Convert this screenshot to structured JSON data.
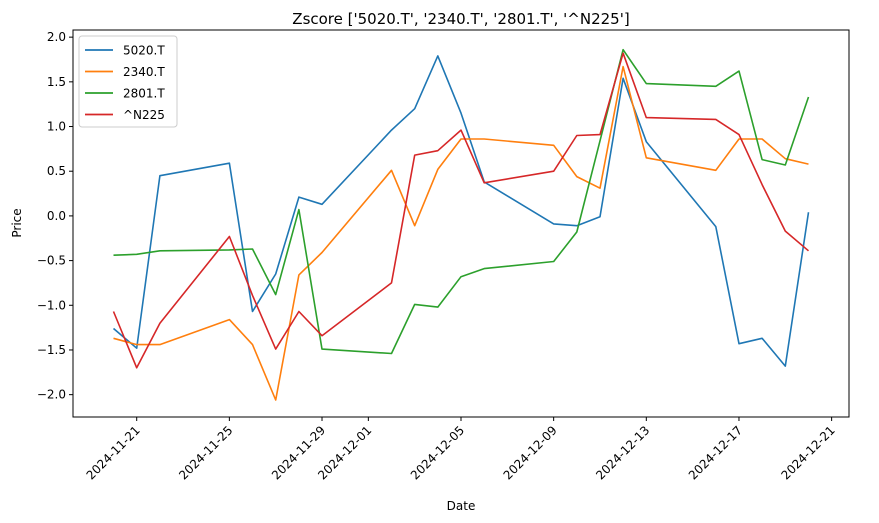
{
  "chart_data": {
    "type": "line",
    "title": "Zscore ['5020.T', '2340.T', '2801.T', '^N225']",
    "xlabel": "Date",
    "ylabel": "Price",
    "x_type": "date",
    "xlim": [
      "2024-11-18T06:00",
      "2024-12-21T18:00"
    ],
    "ylim": [
      -2.25,
      2.08
    ],
    "x_ticks": [
      "2024-11-21",
      "2024-11-25",
      "2024-11-29",
      "2024-12-01",
      "2024-12-05",
      "2024-12-09",
      "2024-12-13",
      "2024-12-17",
      "2024-12-21"
    ],
    "y_ticks": [
      2.0,
      1.5,
      1.0,
      0.5,
      0.0,
      -0.5,
      -1.0,
      -1.5,
      -2.0
    ],
    "y_tick_labels": [
      "2.0",
      "1.5",
      "1.0",
      "0.5",
      "0.0",
      "−0.5",
      "−1.0",
      "−1.5",
      "−2.0"
    ],
    "legend_position": "top-left",
    "grid": false,
    "x": [
      "2024-11-20",
      "2024-11-21",
      "2024-11-22",
      "2024-11-25",
      "2024-11-26",
      "2024-11-27",
      "2024-11-28",
      "2024-11-29",
      "2024-12-02",
      "2024-12-03",
      "2024-12-04",
      "2024-12-05",
      "2024-12-06",
      "2024-12-09",
      "2024-12-10",
      "2024-12-11",
      "2024-12-12",
      "2024-12-13",
      "2024-12-16",
      "2024-12-17",
      "2024-12-18",
      "2024-12-19",
      "2024-12-20"
    ],
    "series": [
      {
        "name": "5020.T",
        "color": "#1f77b4",
        "values": [
          -1.26,
          -1.48,
          0.45,
          0.59,
          -1.07,
          -0.65,
          0.21,
          0.13,
          0.96,
          1.2,
          1.79,
          1.15,
          0.38,
          -0.09,
          -0.11,
          -0.01,
          1.54,
          0.83,
          -0.12,
          -1.43,
          -1.37,
          -1.68,
          0.04
        ]
      },
      {
        "name": "2340.T",
        "color": "#ff7f0e",
        "values": [
          -1.37,
          -1.44,
          -1.44,
          -1.16,
          -1.44,
          -2.06,
          -0.66,
          -0.41,
          0.51,
          -0.11,
          0.52,
          0.86,
          0.86,
          0.79,
          0.44,
          0.31,
          1.67,
          0.65,
          0.51,
          0.86,
          0.86,
          0.64,
          0.58
        ]
      },
      {
        "name": "2801.T",
        "color": "#2ca02c",
        "values": [
          -0.44,
          -0.43,
          -0.39,
          -0.38,
          -0.37,
          -0.88,
          0.07,
          -1.49,
          -1.54,
          -0.99,
          -1.02,
          -0.68,
          -0.59,
          -0.51,
          -0.18,
          0.84,
          1.86,
          1.48,
          1.45,
          1.62,
          0.63,
          0.57,
          1.33
        ]
      },
      {
        "name": "^N225",
        "color": "#d62728",
        "values": [
          -1.07,
          -1.7,
          -1.2,
          -0.23,
          -0.89,
          -1.49,
          -1.07,
          -1.34,
          -0.75,
          0.68,
          0.73,
          0.96,
          0.37,
          0.5,
          0.9,
          0.91,
          1.82,
          1.1,
          1.08,
          0.91,
          0.35,
          -0.17,
          -0.39
        ]
      }
    ]
  }
}
